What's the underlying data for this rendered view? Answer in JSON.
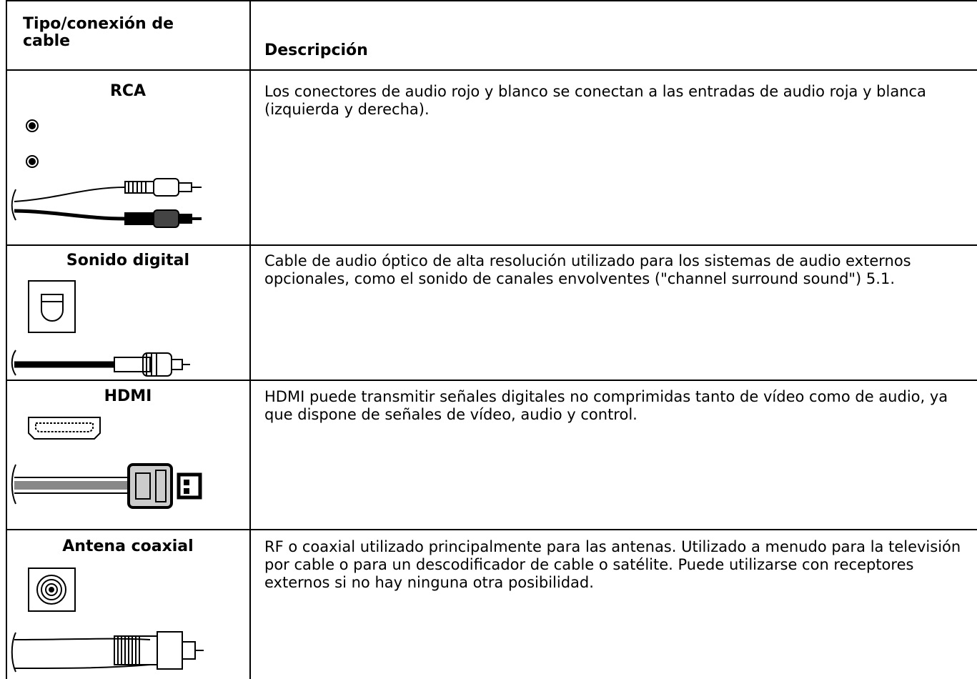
{
  "table": {
    "header": [
      "Tipo/conexión de cable",
      "Descripción"
    ],
    "rows": [
      [
        "RCA",
        "Los conectores de audio rojo y blanco se conectan a las entradas de audio roja y blanca (izquierda y derecha)."
      ],
      [
        "Sonido digital",
        "Cable de audio óptico de alta resolución utilizado para los sistemas de audio externos opcionales, como el sonido de canales envolventes (\"channel surround sound\") 5.1."
      ],
      [
        "HDMI",
        "HDMI puede transmitir señales digitales no comprimidas tanto de vídeo como de audio, ya que dispone de señales de vídeo, audio y control."
      ],
      [
        "Antena coaxial",
        "RF o coaxial utilizado principalmente para las antenas. Utilizado a menudo para la televisión por cable o para un descodificador de cable o satélite. Puede utilizarse con receptores externos si no hay ninguna otra posibilidad."
      ]
    ]
  }
}
